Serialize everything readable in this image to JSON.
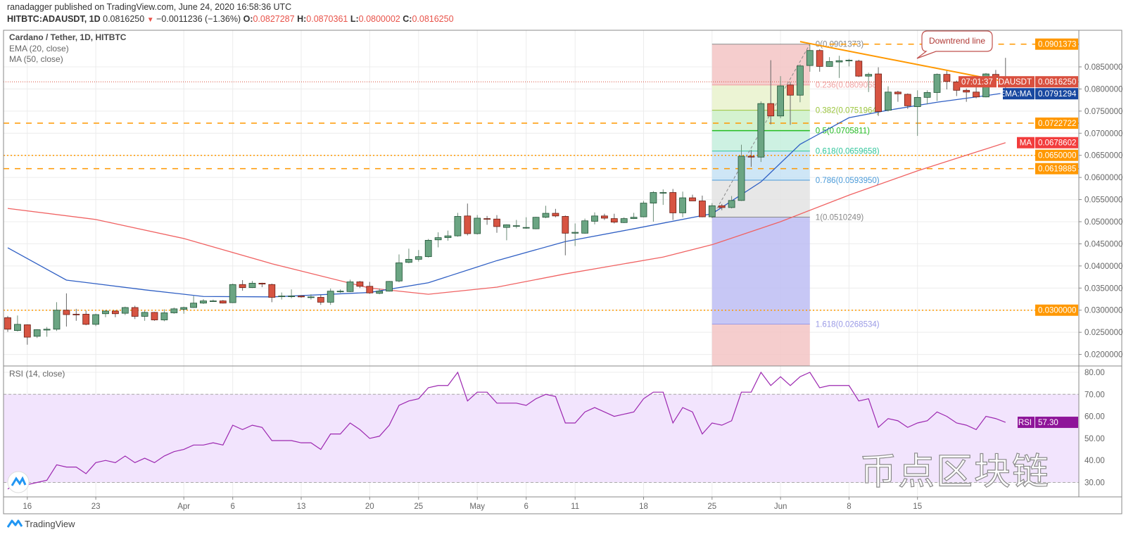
{
  "header": {
    "publisher_line": "ranadagger published on TradingView.com, June 24, 2020 16:58:36 UTC",
    "symbol": "HITBTC:ADAUSDT, 1D",
    "last": "0.0816250",
    "change": "−0.0011236 (−1.36%)",
    "open_label": "O:",
    "open": "0.0827287",
    "high_label": "H:",
    "high": "0.0870361",
    "low_label": "L:",
    "low": "0.0800002",
    "close_label": "C:",
    "close": "0.0816250",
    "change_icon": "triangle-down-icon"
  },
  "legend": {
    "title": "Cardano / Tether, 1D, HITBTC",
    "ema": "EMA (20, close)",
    "ma": "MA (50, close)",
    "rsi": "RSI (14, close)"
  },
  "colors": {
    "up": "#6ba583",
    "up_border": "#225437",
    "down": "#d75442",
    "down_border": "#6b1d14",
    "ema": "#2f5fc4",
    "ma": "#f06262",
    "rsi": "#9c27b0",
    "rsi_band": "#f2e4fd",
    "level_orange": "#ff9800",
    "last_price": "#d9503f",
    "ema_badge": "#1848a0",
    "ma_badge": "#f23c3c",
    "rsi_badge": "#8e1599",
    "trendline": "#ff9800"
  },
  "price_axis": {
    "ticks": [
      "0.0200000",
      "0.0250000",
      "0.0300000",
      "0.0350000",
      "0.0400000",
      "0.0450000",
      "0.0500000",
      "0.0550000",
      "0.0600000",
      "0.0650000",
      "0.0700000",
      "0.0750000",
      "0.0800000",
      "0.0850000"
    ]
  },
  "rsi_axis": {
    "ticks": [
      "80.00",
      "70.00",
      "60.00",
      "50.00",
      "40.00",
      "30.00"
    ]
  },
  "horizontal_levels": [
    {
      "price": "0.0901373",
      "style": "dashed",
      "from_date": "2020-06-06"
    },
    {
      "price": "0.0722722",
      "style": "dashed"
    },
    {
      "price": "0.0650000",
      "style": "dotted"
    },
    {
      "price": "0.0619885",
      "style": "dashed"
    },
    {
      "price": "0.0300000",
      "style": "dotted"
    }
  ],
  "badges": {
    "last": {
      "name": "ADAUSDT",
      "value": "0.0816250",
      "countdown": "07:01:37"
    },
    "ema": {
      "name": "EMA:MA",
      "value": "0.0791294"
    },
    "ma": {
      "name": "MA",
      "value": "0.0678602"
    },
    "rsi": {
      "name": "RSI",
      "value": "57.30"
    }
  },
  "fib": {
    "from": [
      "2020-05-25",
      0.0510249
    ],
    "to": [
      "2020-06-04",
      0.0901373
    ],
    "levels": [
      {
        "label": "0(0.0901373)",
        "price": 0.0901373,
        "fill": "#f3c4c4",
        "color": "#888888"
      },
      {
        "label": "0.236(0.0809068)",
        "price": 0.0809068,
        "fill": "#e9f2cc",
        "color": "#f0a0a0"
      },
      {
        "label": "0.382(0.0751964)",
        "price": 0.0751964,
        "fill": "#cdf0c8",
        "color": "#9bc53d"
      },
      {
        "label": "0.5(0.0705811)",
        "price": 0.0705811,
        "fill": "#c4eedd",
        "color": "#22bb22"
      },
      {
        "label": "0.618(0.0659658)",
        "price": 0.0659658,
        "fill": "#c6e2f4",
        "color": "#2fc59a"
      },
      {
        "label": "0.786(0.0593950)",
        "price": 0.059395,
        "fill": "#e3e3e3",
        "color": "#4a9ad8"
      },
      {
        "label": "1(0.0510249)",
        "price": 0.0510249,
        "fill": "#bdbdf3",
        "color": "#888888"
      },
      {
        "label": "1.618(0.0268534)",
        "price": 0.0268534,
        "fill": "#f3c4c4",
        "color": "#9a9ae6"
      }
    ]
  },
  "trendline": {
    "from": [
      "2020-06-03",
      0.0907
    ],
    "to": [
      "2020-06-25",
      0.0812
    ],
    "callout": "Downtrend line"
  },
  "chart_data": {
    "type": "candlestick",
    "title": "Cardano / Tether, 1D, HITBTC",
    "ylim": [
      0.018,
      0.094
    ],
    "x_ticks": [
      {
        "label": "16",
        "date": "2020-03-16"
      },
      {
        "label": "23",
        "date": "2020-03-23"
      },
      {
        "label": "Apr",
        "date": "2020-04-01"
      },
      {
        "label": "6",
        "date": "2020-04-06"
      },
      {
        "label": "13",
        "date": "2020-04-13"
      },
      {
        "label": "20",
        "date": "2020-04-20"
      },
      {
        "label": "25",
        "date": "2020-04-25"
      },
      {
        "label": "May",
        "date": "2020-05-01"
      },
      {
        "label": "6",
        "date": "2020-05-06"
      },
      {
        "label": "11",
        "date": "2020-05-11"
      },
      {
        "label": "18",
        "date": "2020-05-18"
      },
      {
        "label": "25",
        "date": "2020-05-25"
      },
      {
        "label": "Jun",
        "date": "2020-06-01"
      },
      {
        "label": "8",
        "date": "2020-06-08"
      },
      {
        "label": "15",
        "date": "2020-06-15"
      }
    ],
    "candles_columns": [
      "date",
      "open",
      "high",
      "low",
      "close"
    ],
    "candles": [
      [
        "2020-03-14",
        0.0283,
        0.0287,
        0.0251,
        0.0257
      ],
      [
        "2020-03-15",
        0.0254,
        0.0288,
        0.0252,
        0.0268
      ],
      [
        "2020-03-16",
        0.0267,
        0.0268,
        0.0222,
        0.0239
      ],
      [
        "2020-03-17",
        0.0241,
        0.0257,
        0.0237,
        0.0256
      ],
      [
        "2020-03-18",
        0.0255,
        0.0262,
        0.024,
        0.0257
      ],
      [
        "2020-03-19",
        0.0257,
        0.0318,
        0.0253,
        0.03
      ],
      [
        "2020-03-20",
        0.03,
        0.0338,
        0.0263,
        0.029
      ],
      [
        "2020-03-21",
        0.0291,
        0.0303,
        0.0276,
        0.029
      ],
      [
        "2020-03-22",
        0.0291,
        0.0299,
        0.0266,
        0.0268
      ],
      [
        "2020-03-23",
        0.0268,
        0.0292,
        0.0264,
        0.029
      ],
      [
        "2020-03-24",
        0.0292,
        0.03,
        0.0284,
        0.0298
      ],
      [
        "2020-03-25",
        0.0298,
        0.03,
        0.0284,
        0.0292
      ],
      [
        "2020-03-26",
        0.0293,
        0.0308,
        0.0289,
        0.0306
      ],
      [
        "2020-03-27",
        0.0306,
        0.031,
        0.028,
        0.0286
      ],
      [
        "2020-03-28",
        0.0286,
        0.0299,
        0.0276,
        0.0295
      ],
      [
        "2020-03-29",
        0.0295,
        0.0296,
        0.0276,
        0.0278
      ],
      [
        "2020-03-30",
        0.0278,
        0.0302,
        0.0275,
        0.0294
      ],
      [
        "2020-03-31",
        0.0294,
        0.0306,
        0.0292,
        0.0303
      ],
      [
        "2020-04-01",
        0.0302,
        0.0308,
        0.0292,
        0.0306
      ],
      [
        "2020-04-02",
        0.0306,
        0.0332,
        0.0305,
        0.0316
      ],
      [
        "2020-04-03",
        0.0316,
        0.0325,
        0.0314,
        0.0321
      ],
      [
        "2020-04-04",
        0.0321,
        0.0324,
        0.0319,
        0.0321
      ],
      [
        "2020-04-05",
        0.0321,
        0.0323,
        0.0315,
        0.0316
      ],
      [
        "2020-04-06",
        0.0317,
        0.036,
        0.0316,
        0.0358
      ],
      [
        "2020-04-07",
        0.0358,
        0.0368,
        0.0344,
        0.0351
      ],
      [
        "2020-04-08",
        0.0351,
        0.0366,
        0.035,
        0.0361
      ],
      [
        "2020-04-09",
        0.0361,
        0.0362,
        0.0352,
        0.0359
      ],
      [
        "2020-04-10",
        0.0358,
        0.036,
        0.0318,
        0.0329
      ],
      [
        "2020-04-11",
        0.0331,
        0.034,
        0.0324,
        0.0332
      ],
      [
        "2020-04-12",
        0.0332,
        0.0347,
        0.0327,
        0.0332
      ],
      [
        "2020-04-13",
        0.0332,
        0.0334,
        0.0328,
        0.033
      ],
      [
        "2020-04-14",
        0.033,
        0.0336,
        0.0324,
        0.033
      ],
      [
        "2020-04-15",
        0.0329,
        0.0335,
        0.0312,
        0.0318
      ],
      [
        "2020-04-16",
        0.0318,
        0.0349,
        0.0312,
        0.0343
      ],
      [
        "2020-04-17",
        0.0343,
        0.0347,
        0.0339,
        0.0343
      ],
      [
        "2020-04-18",
        0.0342,
        0.0369,
        0.0341,
        0.0364
      ],
      [
        "2020-04-19",
        0.0364,
        0.0366,
        0.035,
        0.0354
      ],
      [
        "2020-04-20",
        0.0354,
        0.0364,
        0.0337,
        0.0339
      ],
      [
        "2020-04-21",
        0.0338,
        0.0349,
        0.0336,
        0.0343
      ],
      [
        "2020-04-22",
        0.0343,
        0.0366,
        0.0342,
        0.0365
      ],
      [
        "2020-04-23",
        0.0366,
        0.0426,
        0.0363,
        0.0407
      ],
      [
        "2020-04-24",
        0.0408,
        0.0439,
        0.0406,
        0.0415
      ],
      [
        "2020-04-25",
        0.0415,
        0.0436,
        0.041,
        0.0421
      ],
      [
        "2020-04-26",
        0.0421,
        0.0461,
        0.0419,
        0.0458
      ],
      [
        "2020-04-27",
        0.0459,
        0.0476,
        0.0442,
        0.0464
      ],
      [
        "2020-04-28",
        0.0464,
        0.048,
        0.0457,
        0.0468
      ],
      [
        "2020-04-29",
        0.0468,
        0.052,
        0.0466,
        0.0512
      ],
      [
        "2020-04-30",
        0.0513,
        0.0541,
        0.0469,
        0.0473
      ],
      [
        "2020-05-01",
        0.0473,
        0.0515,
        0.0471,
        0.0508
      ],
      [
        "2020-05-02",
        0.0507,
        0.0513,
        0.0493,
        0.0506
      ],
      [
        "2020-05-03",
        0.0506,
        0.0515,
        0.0475,
        0.0489
      ],
      [
        "2020-05-04",
        0.0487,
        0.0494,
        0.0458,
        0.0493
      ],
      [
        "2020-05-05",
        0.0491,
        0.0504,
        0.0485,
        0.0491
      ],
      [
        "2020-05-06",
        0.0486,
        0.051,
        0.0484,
        0.0487
      ],
      [
        "2020-05-07",
        0.0484,
        0.0511,
        0.0483,
        0.051
      ],
      [
        "2020-05-08",
        0.051,
        0.0536,
        0.0508,
        0.0519
      ],
      [
        "2020-05-09",
        0.0519,
        0.0529,
        0.051,
        0.0513
      ],
      [
        "2020-05-10",
        0.0512,
        0.0514,
        0.0424,
        0.0474
      ],
      [
        "2020-05-11",
        0.0474,
        0.0496,
        0.0445,
        0.0476
      ],
      [
        "2020-05-12",
        0.0474,
        0.0507,
        0.0473,
        0.0502
      ],
      [
        "2020-05-13",
        0.0501,
        0.0521,
        0.0494,
        0.0513
      ],
      [
        "2020-05-14",
        0.0513,
        0.0518,
        0.0504,
        0.0508
      ],
      [
        "2020-05-15",
        0.0507,
        0.0518,
        0.0496,
        0.0499
      ],
      [
        "2020-05-16",
        0.0498,
        0.051,
        0.0497,
        0.0507
      ],
      [
        "2020-05-17",
        0.0507,
        0.052,
        0.0506,
        0.051
      ],
      [
        "2020-05-18",
        0.0511,
        0.0547,
        0.051,
        0.0542
      ],
      [
        "2020-05-19",
        0.0542,
        0.0569,
        0.05,
        0.0566
      ],
      [
        "2020-05-20",
        0.0566,
        0.0573,
        0.0538,
        0.0566
      ],
      [
        "2020-05-21",
        0.0566,
        0.0574,
        0.0504,
        0.052
      ],
      [
        "2020-05-22",
        0.052,
        0.0568,
        0.051,
        0.0554
      ],
      [
        "2020-05-23",
        0.0554,
        0.0561,
        0.0547,
        0.0547
      ],
      [
        "2020-05-24",
        0.0547,
        0.0559,
        0.051,
        0.0511
      ],
      [
        "2020-05-25",
        0.0511,
        0.0542,
        0.0508,
        0.0536
      ],
      [
        "2020-05-26",
        0.0536,
        0.054,
        0.0526,
        0.0532
      ],
      [
        "2020-05-27",
        0.0532,
        0.0558,
        0.053,
        0.0548
      ],
      [
        "2020-05-28",
        0.0548,
        0.0674,
        0.0547,
        0.0648
      ],
      [
        "2020-05-29",
        0.0648,
        0.0662,
        0.0624,
        0.0646
      ],
      [
        "2020-05-30",
        0.0646,
        0.0772,
        0.0635,
        0.0767
      ],
      [
        "2020-05-31",
        0.0767,
        0.0865,
        0.072,
        0.0739
      ],
      [
        "2020-06-01",
        0.0739,
        0.0829,
        0.0734,
        0.0807
      ],
      [
        "2020-06-02",
        0.0809,
        0.0816,
        0.0719,
        0.0786
      ],
      [
        "2020-06-03",
        0.0786,
        0.0856,
        0.077,
        0.0852
      ],
      [
        "2020-06-04",
        0.0853,
        0.0901,
        0.0839,
        0.0887
      ],
      [
        "2020-06-05",
        0.0887,
        0.089,
        0.0839,
        0.0851
      ],
      [
        "2020-06-06",
        0.0851,
        0.0872,
        0.085,
        0.0862
      ],
      [
        "2020-06-07",
        0.0861,
        0.0875,
        0.0825,
        0.0864
      ],
      [
        "2020-06-08",
        0.0864,
        0.0868,
        0.0851,
        0.0865
      ],
      [
        "2020-06-09",
        0.0863,
        0.0866,
        0.0827,
        0.0829
      ],
      [
        "2020-06-10",
        0.0829,
        0.0837,
        0.0793,
        0.0833
      ],
      [
        "2020-06-11",
        0.0834,
        0.0849,
        0.0739,
        0.0749
      ],
      [
        "2020-06-12",
        0.0752,
        0.0806,
        0.0749,
        0.0793
      ],
      [
        "2020-06-13",
        0.0793,
        0.0796,
        0.0771,
        0.0789
      ],
      [
        "2020-06-14",
        0.0788,
        0.079,
        0.0755,
        0.0762
      ],
      [
        "2020-06-15",
        0.076,
        0.0797,
        0.0694,
        0.0781
      ],
      [
        "2020-06-16",
        0.0781,
        0.0797,
        0.0765,
        0.0792
      ],
      [
        "2020-06-17",
        0.0792,
        0.0835,
        0.0773,
        0.0833
      ],
      [
        "2020-06-18",
        0.0833,
        0.0843,
        0.0799,
        0.0817
      ],
      [
        "2020-06-19",
        0.0816,
        0.0819,
        0.0784,
        0.0797
      ],
      [
        "2020-06-20",
        0.0797,
        0.0801,
        0.0771,
        0.0793
      ],
      [
        "2020-06-21",
        0.0793,
        0.0808,
        0.0779,
        0.0782
      ],
      [
        "2020-06-22",
        0.0782,
        0.0836,
        0.0781,
        0.0834
      ],
      [
        "2020-06-23",
        0.0833,
        0.0843,
        0.0813,
        0.0826
      ],
      [
        "2020-06-24",
        0.0827287,
        0.0870361,
        0.0800002,
        0.081625
      ]
    ],
    "ema20": [
      [
        "2020-03-14",
        0.0441
      ],
      [
        "2020-03-20",
        0.0368
      ],
      [
        "2020-03-28",
        0.0346
      ],
      [
        "2020-04-03",
        0.0331
      ],
      [
        "2020-04-10",
        0.033
      ],
      [
        "2020-04-20",
        0.034
      ],
      [
        "2020-04-26",
        0.0362
      ],
      [
        "2020-05-03",
        0.0412
      ],
      [
        "2020-05-10",
        0.0455
      ],
      [
        "2020-05-17",
        0.0484
      ],
      [
        "2020-05-25",
        0.0518
      ],
      [
        "2020-05-30",
        0.059
      ],
      [
        "2020-06-03",
        0.0675
      ],
      [
        "2020-06-08",
        0.0735
      ],
      [
        "2020-06-12",
        0.0752
      ],
      [
        "2020-06-17",
        0.077
      ],
      [
        "2020-06-22",
        0.0785
      ],
      [
        "2020-06-24",
        0.0791294
      ]
    ],
    "ma50": [
      [
        "2020-03-14",
        0.053
      ],
      [
        "2020-03-23",
        0.0505
      ],
      [
        "2020-04-01",
        0.0462
      ],
      [
        "2020-04-10",
        0.0405
      ],
      [
        "2020-04-20",
        0.035
      ],
      [
        "2020-04-26",
        0.0336
      ],
      [
        "2020-05-03",
        0.0352
      ],
      [
        "2020-05-10",
        0.0382
      ],
      [
        "2020-05-20",
        0.042
      ],
      [
        "2020-05-25",
        0.0448
      ],
      [
        "2020-06-01",
        0.05
      ],
      [
        "2020-06-08",
        0.056
      ],
      [
        "2020-06-15",
        0.0615
      ],
      [
        "2020-06-24",
        0.0678602
      ]
    ],
    "rsi": {
      "ylim": [
        25,
        83
      ],
      "bands": [
        30,
        70
      ],
      "values": [
        27,
        30,
        29,
        30,
        31,
        38,
        37,
        37,
        34,
        39,
        40,
        39,
        42,
        39,
        41,
        39,
        42,
        44,
        45,
        47,
        47,
        48,
        47,
        56,
        54,
        56,
        55,
        49,
        49,
        49,
        48,
        48,
        45,
        52,
        52,
        57,
        54,
        50,
        51,
        56,
        65,
        67,
        68,
        73,
        74,
        74,
        80,
        67,
        71,
        71,
        66,
        66,
        66,
        65,
        68,
        70,
        69,
        57,
        57,
        62,
        64,
        62,
        60,
        61,
        62,
        68,
        71,
        71,
        57,
        64,
        62,
        52,
        57,
        56,
        58,
        71,
        71,
        80,
        74,
        78,
        74,
        78,
        80,
        73,
        74,
        74,
        74,
        67,
        68,
        55,
        59,
        58,
        55,
        57,
        58,
        62,
        60,
        57,
        56,
        54,
        60,
        59,
        57.3
      ]
    }
  },
  "watermark": "币点区块链",
  "footer": {
    "brand": "TradingView"
  }
}
